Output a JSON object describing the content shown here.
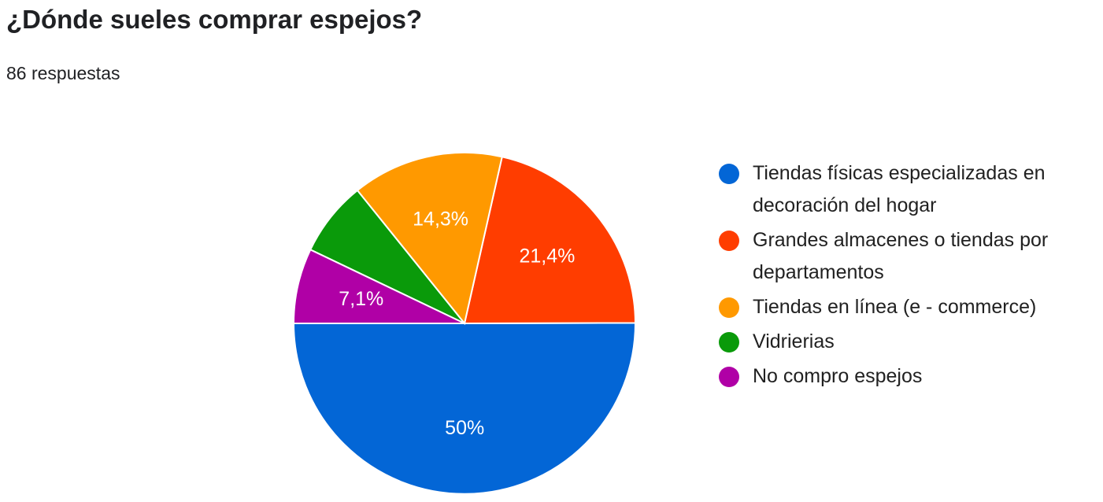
{
  "header": {
    "title": "¿Dónde sueles comprar espejos?",
    "responses": "86 respuestas"
  },
  "chart_data": {
    "type": "pie",
    "title": "¿Dónde sueles comprar espejos?",
    "categories": [
      "Tiendas físicas especializadas en decoración del hogar",
      "Grandes almacenes o tiendas por departamentos",
      "Tiendas en línea (e - commerce)",
      "Vidrierias",
      "No compro espejos"
    ],
    "values": [
      50,
      21.4,
      14.3,
      7.1,
      7.1
    ],
    "data_labels": [
      "50%",
      "21,4%",
      "14,3%",
      "",
      "7,1%"
    ],
    "colors": [
      "#0366d6",
      "#ff3d00",
      "#ff9900",
      "#0a9a0a",
      "#b000a6"
    ],
    "legend_position": "right"
  }
}
